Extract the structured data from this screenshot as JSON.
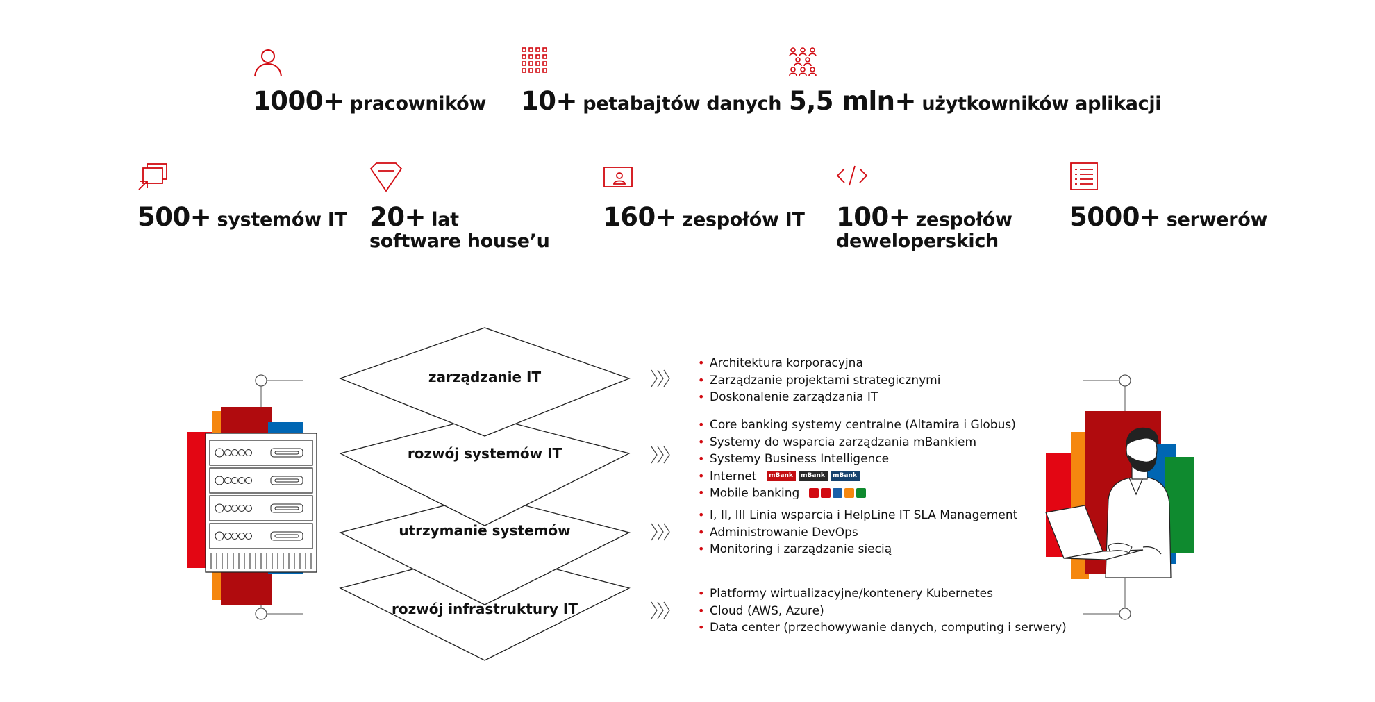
{
  "colors": {
    "accent_red": "#d20a11",
    "dark_red": "#ae0b0b",
    "orange": "#f5870f",
    "blue": "#0066b3",
    "green": "#0f8a2f",
    "text": "#111111"
  },
  "stats_row1": [
    {
      "icon": "person-icon",
      "number": "1000+",
      "label": "pracowników"
    },
    {
      "icon": "grid-icon",
      "number": "10+",
      "label": "petabajtów danych"
    },
    {
      "icon": "people-group-icon",
      "number": "5,5 mln+",
      "label": "użytkowników aplikacji"
    }
  ],
  "stats_row2": [
    {
      "icon": "windows-icon",
      "number": "500+",
      "label": "systemów IT"
    },
    {
      "icon": "gem-icon",
      "number": "20+",
      "label": "lat",
      "label2": "software house’u"
    },
    {
      "icon": "id-card-icon",
      "number": "160+",
      "label": "zespołów IT"
    },
    {
      "icon": "code-icon",
      "number": "100+",
      "label": "zespołów",
      "label2": "deweloperskich"
    },
    {
      "icon": "document-list-icon",
      "number": "5000+",
      "label": "serwerów"
    }
  ],
  "layers": [
    {
      "title": "zarządzanie IT",
      "items": [
        "Architektura korporacyjna",
        "Zarządzanie projektami strategicznymi",
        "Doskonalenie zarządzania IT"
      ]
    },
    {
      "title": "rozwój systemów IT",
      "items": [
        "Core banking systemy centralne (Altamira i Globus)",
        "Systemy do wsparcia zarządzania mBankiem",
        "Systemy Business Intelligence",
        "Internet",
        "Mobile banking"
      ]
    },
    {
      "title": "utrzymanie systemów",
      "items": [
        "I, II, III Linia wsparcia i HelpLine IT SLA Management",
        "Administrowanie DevOps",
        "Monitoring i zarządzanie siecią"
      ]
    },
    {
      "title": "rozwój infrastruktury IT",
      "items": [
        "Platformy wirtualizacyjne/kontenery Kubernetes",
        "Cloud (AWS, Azure)",
        "Data center (przechowywanie danych, computing i serwery)"
      ]
    }
  ],
  "internet_logos": [
    "mBank",
    "mBank",
    "mBank"
  ],
  "illustrations": {
    "left": "server-rack-illustration",
    "right": "person-with-laptop-illustration"
  }
}
